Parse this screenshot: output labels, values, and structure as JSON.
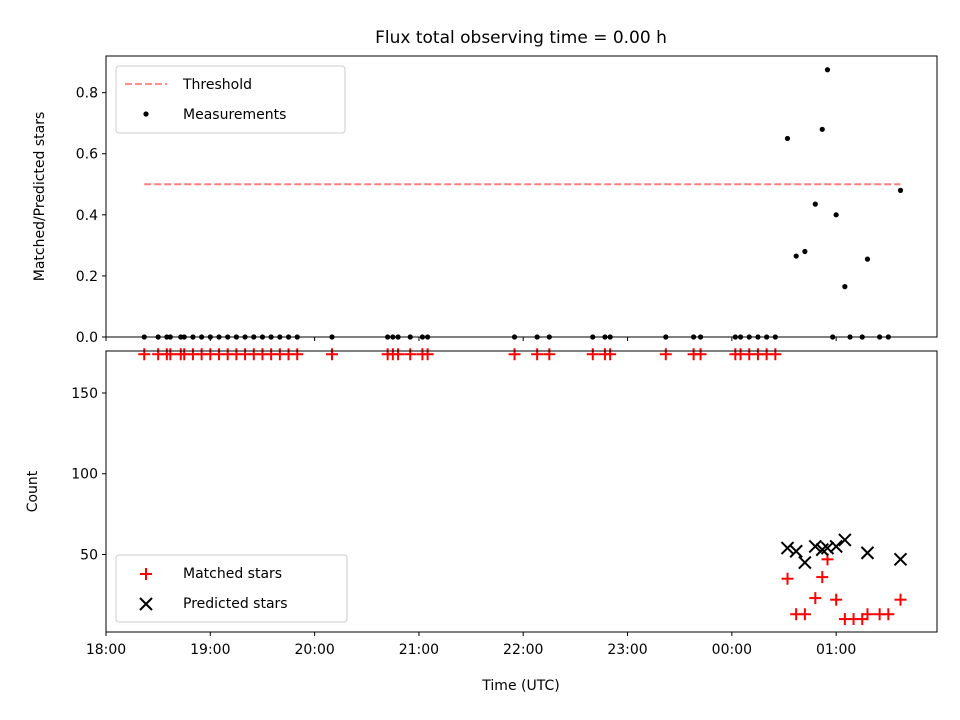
{
  "title": "Flux total observing time = 0.00 h",
  "xlabel": "Time (UTC)",
  "x_ticks": [
    {
      "t": 0,
      "label": "18:00"
    },
    {
      "t": 60,
      "label": "19:00"
    },
    {
      "t": 120,
      "label": "20:00"
    },
    {
      "t": 180,
      "label": "21:00"
    },
    {
      "t": 240,
      "label": "22:00"
    },
    {
      "t": 300,
      "label": "23:00"
    },
    {
      "t": 360,
      "label": "00:00"
    },
    {
      "t": 420,
      "label": "01:00"
    }
  ],
  "colors": {
    "threshold": "#ff7f7f",
    "measurements": "#000000",
    "matched": "#ff0000",
    "predicted": "#000000"
  },
  "chart_data": [
    {
      "type": "scatter",
      "ylabel": "Matched/Predicted stars",
      "xlim": [
        0,
        478
      ],
      "ylim": [
        0,
        0.92
      ],
      "y_ticks": [
        0.0,
        0.2,
        0.4,
        0.6,
        0.8
      ],
      "y_tick_labels": [
        "0.0",
        "0.2",
        "0.4",
        "0.6",
        "0.8"
      ],
      "legend": {
        "position": "upper left",
        "entries": [
          "Threshold",
          "Measurements"
        ]
      },
      "threshold": {
        "name": "Threshold",
        "x": [
          22,
          457
        ],
        "y": [
          0.5,
          0.5
        ]
      },
      "measurements": {
        "name": "Measurements",
        "x": [
          22,
          30,
          35,
          37,
          43,
          45,
          50,
          55,
          60,
          65,
          70,
          75,
          80,
          85,
          90,
          95,
          100,
          105,
          110,
          130,
          162,
          165,
          168,
          175,
          182,
          185,
          235,
          248,
          255,
          280,
          287,
          290,
          322,
          338,
          342,
          362,
          365,
          370,
          375,
          380,
          385,
          392,
          397,
          402,
          408,
          412,
          415,
          418,
          420,
          425,
          428,
          435,
          438,
          445,
          450,
          457
        ],
        "y": [
          0,
          0,
          0,
          0,
          0,
          0,
          0,
          0,
          0,
          0,
          0,
          0,
          0,
          0,
          0,
          0,
          0,
          0,
          0,
          0,
          0,
          0,
          0,
          0,
          0,
          0,
          0,
          0,
          0,
          0,
          0,
          0,
          0,
          0,
          0,
          0,
          0,
          0,
          0,
          0,
          0,
          0.65,
          0.265,
          0.28,
          0.435,
          0.68,
          0.875,
          0,
          0.4,
          0.165,
          0,
          0,
          0.255,
          0,
          0,
          0.48
        ]
      }
    },
    {
      "type": "scatter",
      "ylabel": "Count",
      "xlim": [
        0,
        478
      ],
      "ylim": [
        2,
        176
      ],
      "y_ticks": [
        50,
        100,
        150
      ],
      "y_tick_labels": [
        "50",
        "100",
        "150"
      ],
      "legend": {
        "position": "lower left",
        "entries": [
          "Matched stars",
          "Predicted stars"
        ]
      },
      "matched": {
        "name": "Matched stars",
        "x": [
          22,
          30,
          35,
          37,
          43,
          45,
          50,
          55,
          60,
          65,
          70,
          75,
          80,
          85,
          90,
          95,
          100,
          105,
          110,
          130,
          162,
          165,
          168,
          175,
          182,
          185,
          235,
          248,
          255,
          280,
          287,
          290,
          322,
          338,
          342,
          362,
          365,
          370,
          375,
          380,
          385,
          392,
          397,
          402,
          408,
          412,
          415,
          420,
          425,
          430,
          435,
          438,
          445,
          450,
          457
        ],
        "y": [
          174,
          174,
          174,
          174,
          174,
          174,
          174,
          174,
          174,
          174,
          174,
          174,
          174,
          174,
          174,
          174,
          174,
          174,
          174,
          174,
          174,
          174,
          174,
          174,
          174,
          174,
          174,
          174,
          174,
          174,
          174,
          174,
          174,
          174,
          174,
          174,
          174,
          174,
          174,
          174,
          174,
          35,
          13,
          13,
          23,
          36,
          47,
          22,
          10,
          10,
          10,
          13,
          13,
          13,
          22
        ]
      },
      "predicted": {
        "name": "Predicted stars",
        "x": [
          392,
          397,
          402,
          408,
          412,
          415,
          420,
          425,
          438,
          457
        ],
        "y": [
          54,
          52,
          45,
          55,
          53,
          54,
          55,
          59,
          51,
          47
        ]
      }
    }
  ]
}
